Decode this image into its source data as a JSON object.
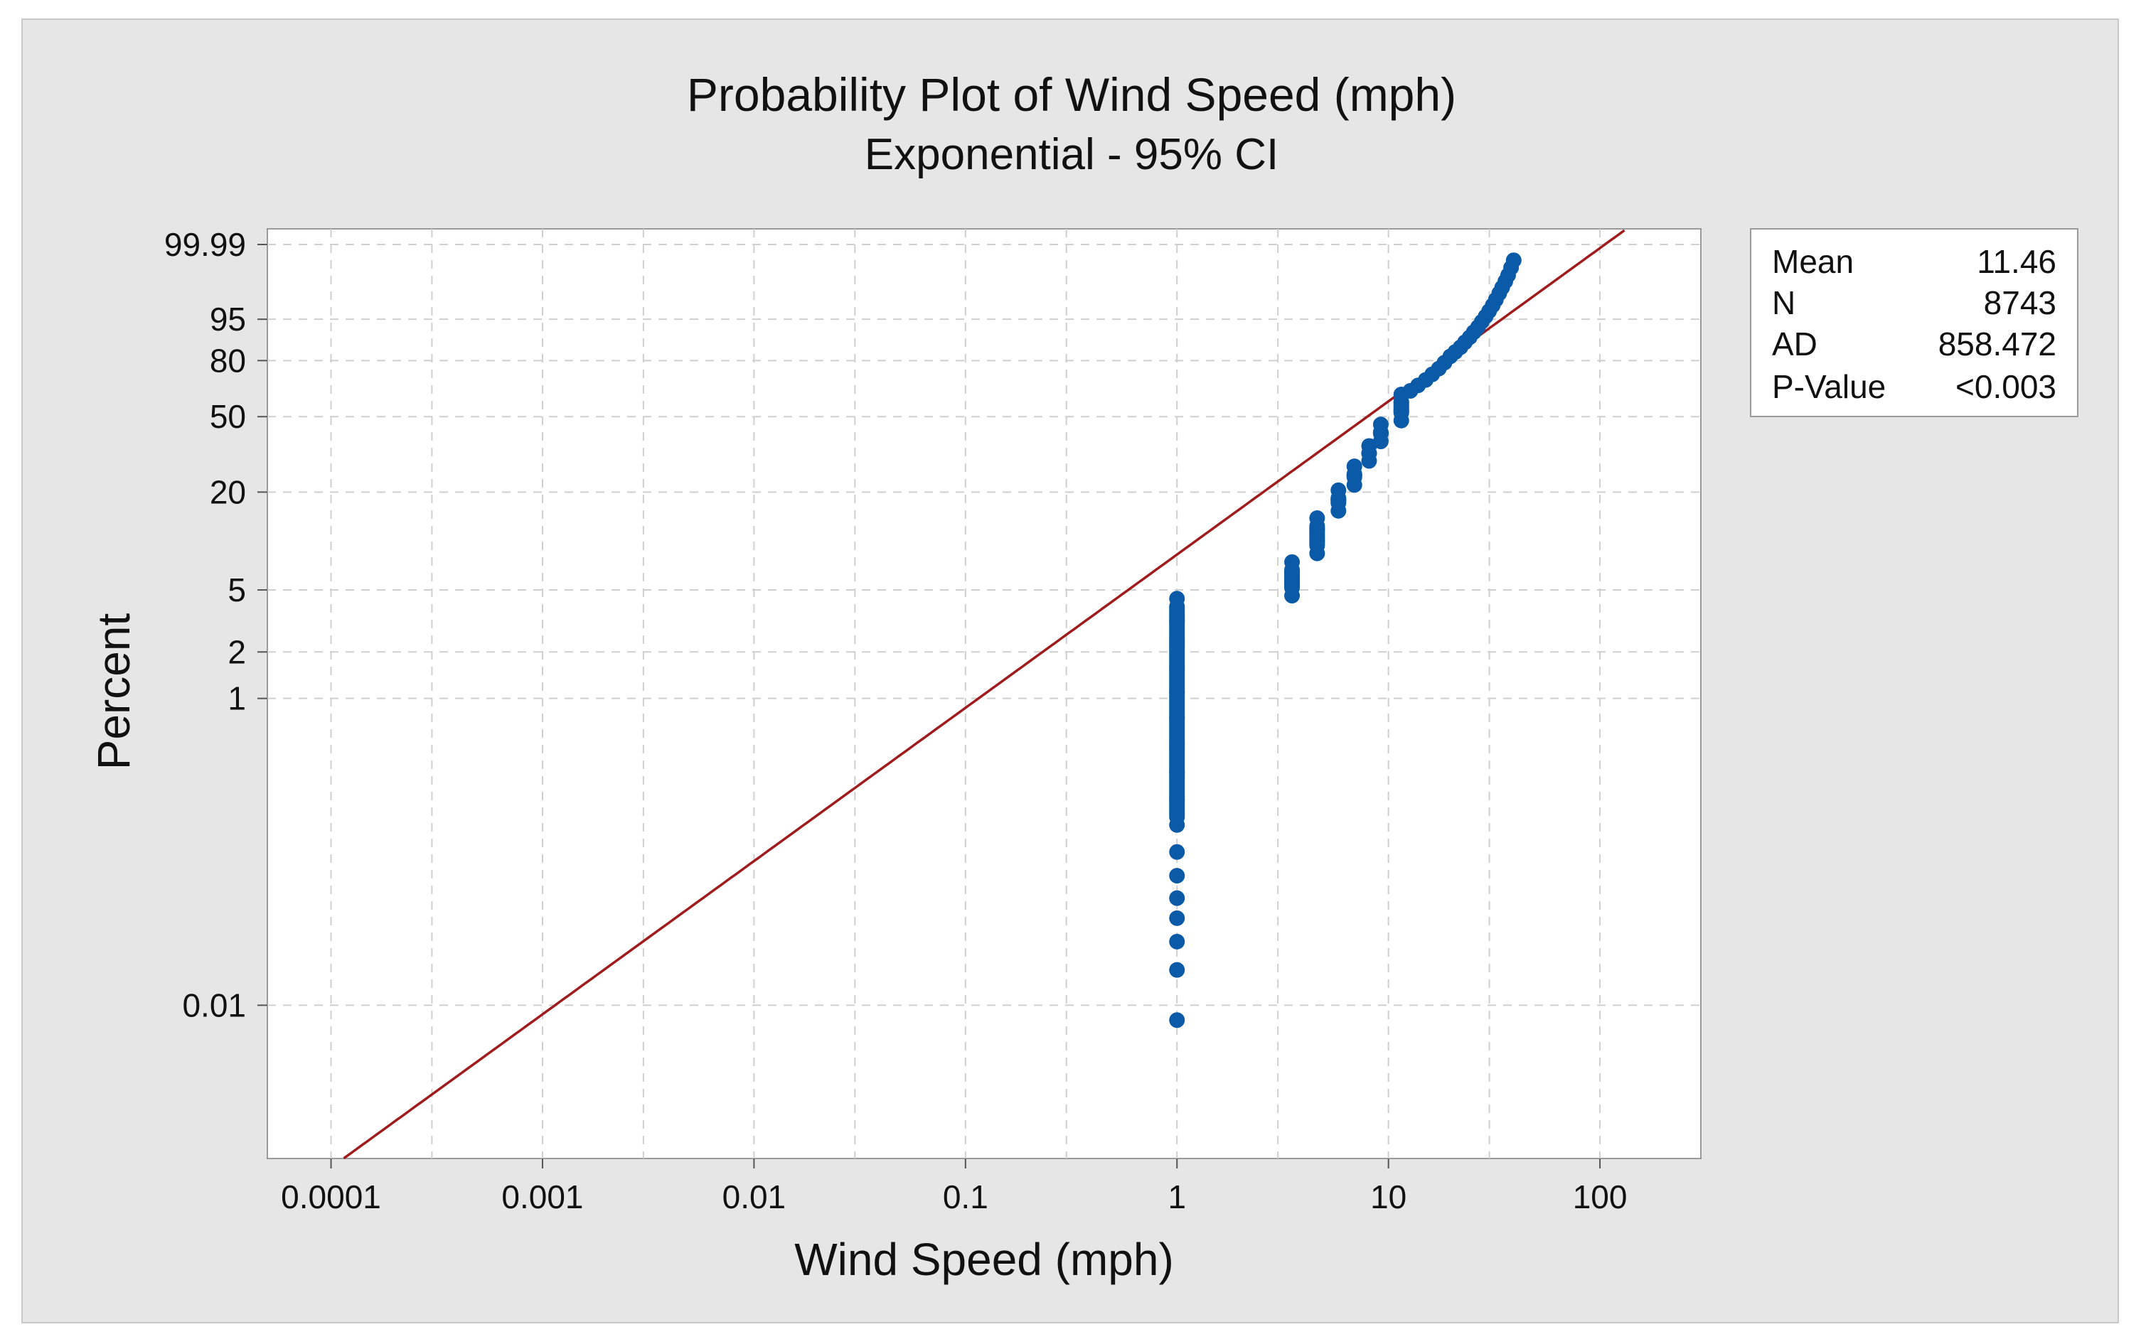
{
  "chart_data": {
    "type": "scatter",
    "title": "Probability Plot of Wind Speed (mph)",
    "subtitle": "Exponential - 95% CI",
    "xlabel": "Wind Speed (mph)",
    "ylabel": "Percent",
    "x_scale": "log",
    "y_scale": "exponential-probability",
    "xlim": [
      5e-05,
      300
    ],
    "ylim_percent": [
      0.001,
      99.99
    ],
    "x_ticks": [
      {
        "value": 0.0001,
        "label": "0.0001"
      },
      {
        "value": 0.001,
        "label": "0.001"
      },
      {
        "value": 0.01,
        "label": "0.01"
      },
      {
        "value": 0.1,
        "label": "0.1"
      },
      {
        "value": 1,
        "label": "1"
      },
      {
        "value": 10,
        "label": "10"
      },
      {
        "value": 100,
        "label": "100"
      }
    ],
    "y_ticks": [
      {
        "value": 99.99,
        "label": "99.99"
      },
      {
        "value": 95,
        "label": "95"
      },
      {
        "value": 80,
        "label": "80"
      },
      {
        "value": 50,
        "label": "50"
      },
      {
        "value": 20,
        "label": "20"
      },
      {
        "value": 5,
        "label": "5"
      },
      {
        "value": 2,
        "label": "2"
      },
      {
        "value": 1,
        "label": "1"
      },
      {
        "value": 0.01,
        "label": "0.01"
      }
    ],
    "fit_line": {
      "distribution": "exponential",
      "mean": 11.46,
      "color": "#a01c1c"
    },
    "point_color": "#0a5aa8",
    "points": [
      {
        "x": 1,
        "p": 0.008
      },
      {
        "x": 1,
        "p": 0.017
      },
      {
        "x": 1,
        "p": 0.026
      },
      {
        "x": 1,
        "p": 0.037
      },
      {
        "x": 1,
        "p": 0.05
      },
      {
        "x": 1,
        "p": 0.07
      },
      {
        "x": 1,
        "p": 0.1
      },
      {
        "x": 1,
        "p": 0.15
      },
      {
        "x": 1,
        "p": 0.22
      },
      {
        "x": 1,
        "p": 0.33
      },
      {
        "x": 1,
        "p": 0.5
      },
      {
        "x": 1,
        "p": 0.75
      },
      {
        "x": 1,
        "p": 1.1
      },
      {
        "x": 1,
        "p": 1.6
      },
      {
        "x": 1,
        "p": 2.3
      },
      {
        "x": 1,
        "p": 3.2
      },
      {
        "x": 1,
        "p": 4.4
      },
      {
        "x": 3.5,
        "p": 4.6
      },
      {
        "x": 3.5,
        "p": 5.5
      },
      {
        "x": 3.5,
        "p": 6.5
      },
      {
        "x": 3.5,
        "p": 7.5
      },
      {
        "x": 4.6,
        "p": 8.5
      },
      {
        "x": 4.6,
        "p": 10.2
      },
      {
        "x": 4.6,
        "p": 12
      },
      {
        "x": 4.6,
        "p": 14
      },
      {
        "x": 5.8,
        "p": 15.5
      },
      {
        "x": 5.8,
        "p": 18
      },
      {
        "x": 5.8,
        "p": 20.5
      },
      {
        "x": 6.9,
        "p": 22
      },
      {
        "x": 6.9,
        "p": 25
      },
      {
        "x": 6.9,
        "p": 28
      },
      {
        "x": 8.1,
        "p": 30
      },
      {
        "x": 8.1,
        "p": 33
      },
      {
        "x": 8.1,
        "p": 36
      },
      {
        "x": 9.2,
        "p": 38
      },
      {
        "x": 9.2,
        "p": 42
      },
      {
        "x": 9.2,
        "p": 46
      },
      {
        "x": 11.5,
        "p": 48
      },
      {
        "x": 11.5,
        "p": 53
      },
      {
        "x": 11.5,
        "p": 58
      },
      {
        "x": 11.5,
        "p": 62
      },
      {
        "x": 12.7,
        "p": 64
      },
      {
        "x": 13.8,
        "p": 67
      },
      {
        "x": 15,
        "p": 70
      },
      {
        "x": 16.1,
        "p": 73
      },
      {
        "x": 17.3,
        "p": 76
      },
      {
        "x": 18.4,
        "p": 79
      },
      {
        "x": 19.6,
        "p": 82
      },
      {
        "x": 20.7,
        "p": 84
      },
      {
        "x": 21.9,
        "p": 86
      },
      {
        "x": 23,
        "p": 88
      },
      {
        "x": 24.2,
        "p": 89.8
      },
      {
        "x": 25.3,
        "p": 91.5
      },
      {
        "x": 26.5,
        "p": 93
      },
      {
        "x": 27.6,
        "p": 94.4
      },
      {
        "x": 28.8,
        "p": 95.6
      },
      {
        "x": 29.9,
        "p": 96.6
      },
      {
        "x": 31.1,
        "p": 97.5
      },
      {
        "x": 32.2,
        "p": 98.2
      },
      {
        "x": 33.4,
        "p": 98.8
      },
      {
        "x": 34.5,
        "p": 99.2
      },
      {
        "x": 35.7,
        "p": 99.5
      },
      {
        "x": 36.8,
        "p": 99.7
      },
      {
        "x": 38,
        "p": 99.85
      },
      {
        "x": 39.1,
        "p": 99.93
      }
    ],
    "stats": [
      {
        "label": "Mean",
        "value": "11.46"
      },
      {
        "label": "N",
        "value": "8743"
      },
      {
        "label": "AD",
        "value": "858.472"
      },
      {
        "label": "P-Value",
        "value": "<0.003"
      }
    ]
  }
}
